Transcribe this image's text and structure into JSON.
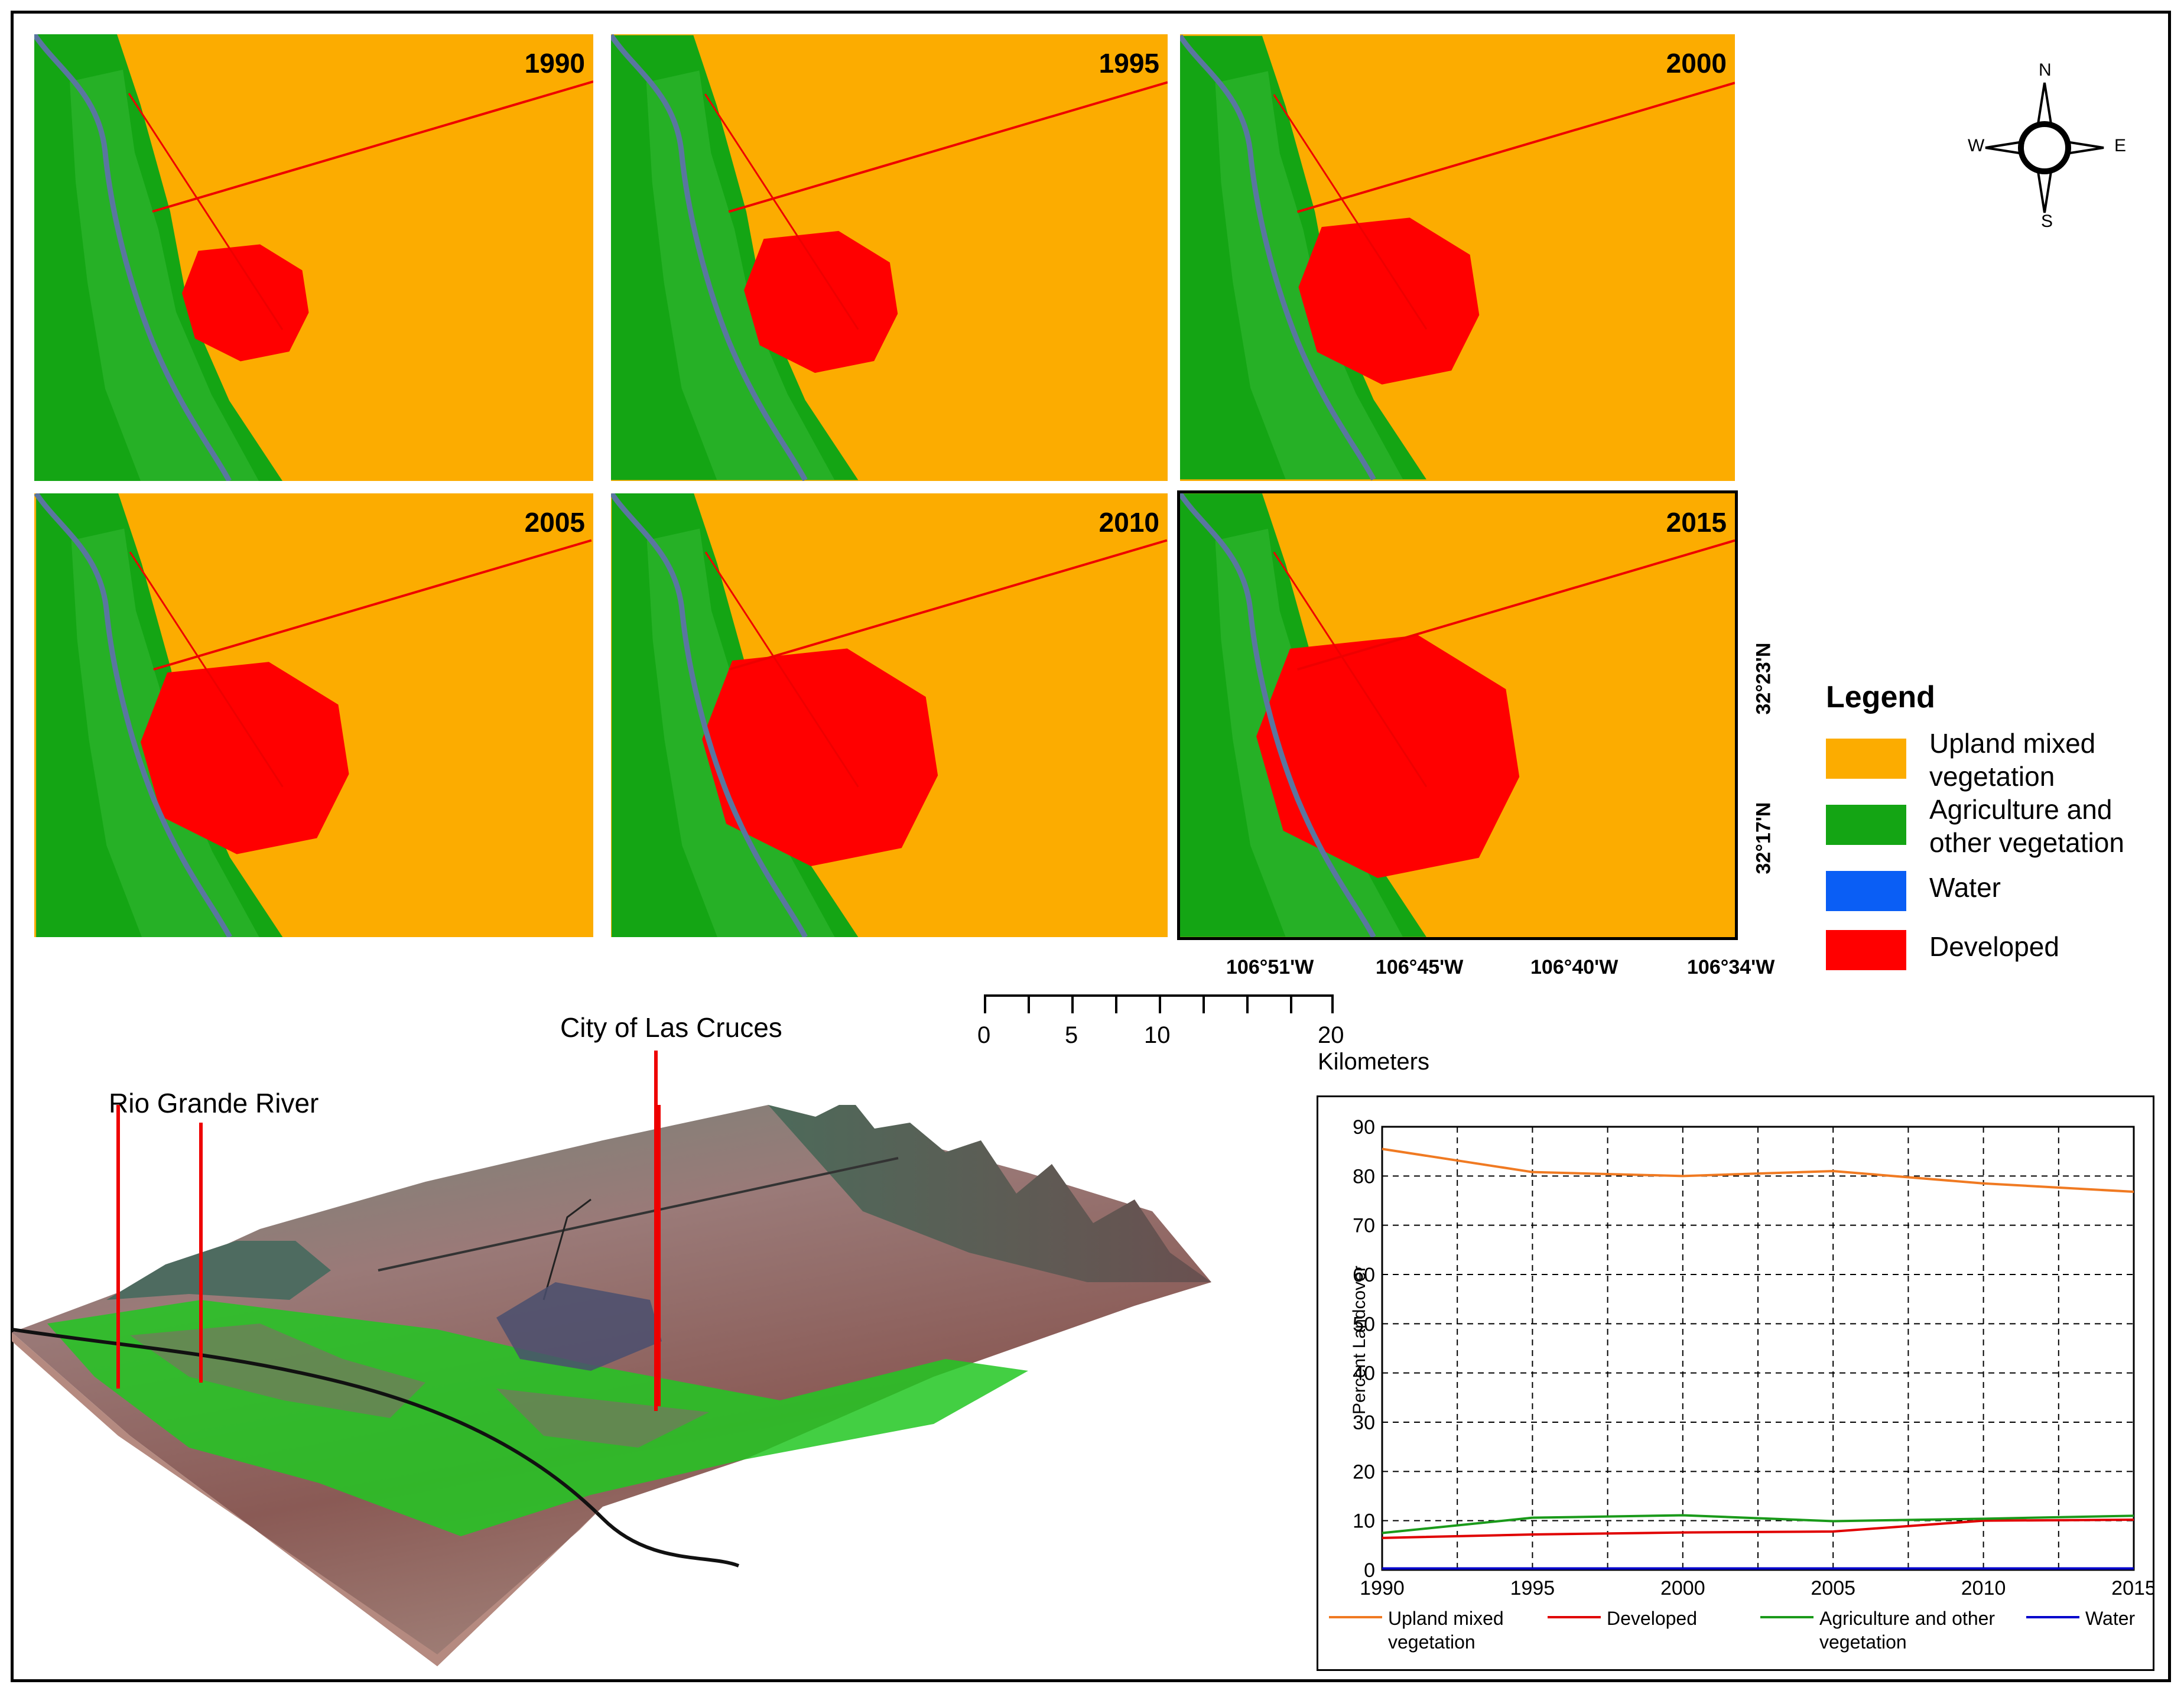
{
  "maps": [
    {
      "year": "1990"
    },
    {
      "year": "1995"
    },
    {
      "year": "2000"
    },
    {
      "year": "2005"
    },
    {
      "year": "2010"
    },
    {
      "year": "2015"
    }
  ],
  "compass": {
    "n": "N",
    "s": "S",
    "e": "E",
    "w": "W"
  },
  "coords": {
    "lon": [
      "106°51'W",
      "106°45'W",
      "106°40'W",
      "106°34'W"
    ],
    "lat": [
      "32°23'N",
      "32°17'N"
    ]
  },
  "legend": {
    "title": "Legend",
    "items": [
      {
        "label": "Upland mixed vegetation",
        "color": "#fcac00"
      },
      {
        "label": "Agriculture and other vegetation",
        "color": "#14a514"
      },
      {
        "label": "Water",
        "color": "#0a5ef5"
      },
      {
        "label": "Developed",
        "color": "#ff0000"
      }
    ]
  },
  "scale_bar": {
    "ticks": [
      "0",
      "5",
      "10",
      "20 Kilometers"
    ]
  },
  "terrain": {
    "label_river": "Rio Grande River",
    "label_city": "City of Las Cruces"
  },
  "chart_data": {
    "type": "line",
    "ylabel": "Percent Landcover",
    "xlabel": "",
    "x": [
      1990,
      1995,
      2000,
      2005,
      2010,
      2015
    ],
    "ylim": [
      0,
      90
    ],
    "yticks": [
      0,
      10,
      20,
      30,
      40,
      50,
      60,
      70,
      80,
      90
    ],
    "grid": true,
    "legend_position": "bottom",
    "series": [
      {
        "name": "Upland mixed vegetation",
        "color": "#f07a22",
        "values": [
          85.5,
          80.8,
          80.0,
          81.0,
          78.5,
          76.8
        ]
      },
      {
        "name": "Developed",
        "color": "#e00000",
        "values": [
          6.5,
          7.2,
          7.6,
          7.8,
          10.0,
          10.2
        ]
      },
      {
        "name": "Agriculture and other vegetation",
        "color": "#1a9a1a",
        "values": [
          7.5,
          10.6,
          11.1,
          9.9,
          10.4,
          11.0
        ]
      },
      {
        "name": "Water",
        "color": "#0000cc",
        "values": [
          0.3,
          0.3,
          0.3,
          0.3,
          0.3,
          0.3
        ]
      }
    ]
  }
}
